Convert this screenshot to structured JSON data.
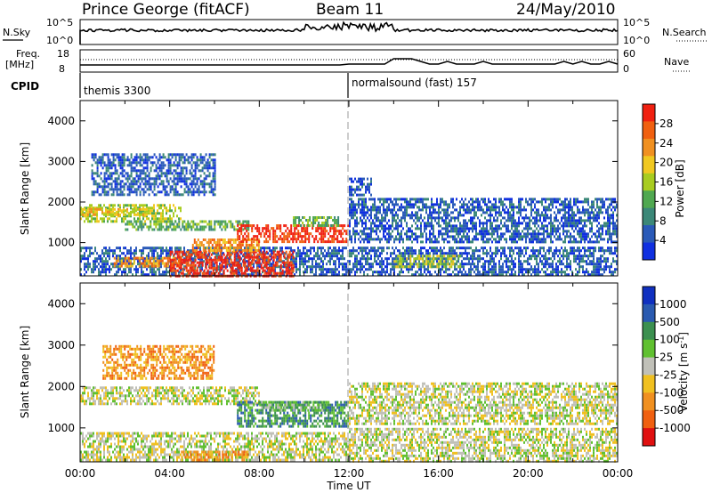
{
  "header": {
    "title": "Prince George (fitACF)",
    "beam": "Beam 11",
    "date": "24/May/2010"
  },
  "top_panels": {
    "nsky_label": "N.Sky",
    "nsky_ticks": [
      "10^5",
      "10^0"
    ],
    "nsearch_label": "N.Search",
    "nsearch_ticks": [
      "10^5",
      "10^0"
    ],
    "freq_label": "Freq.",
    "freq_unit": "[MHz]",
    "freq_ticks": [
      "18",
      "8"
    ],
    "nave_label": "Nave",
    "nave_ticks": [
      "60",
      "0"
    ],
    "cpid_label": "CPID",
    "cpid_segments": [
      {
        "start_hour": 0,
        "label": "themis 3300"
      },
      {
        "start_hour": 12,
        "label": "normalsound (fast) 157"
      }
    ]
  },
  "chart_data": [
    {
      "type": "heatmap",
      "name": "power",
      "ylabel": "Slant Range [km]",
      "x_unit": "hour UT",
      "xlim": [
        0,
        24
      ],
      "ylim": [
        180,
        4500
      ],
      "yticks": [
        1000,
        2000,
        3000,
        4000
      ],
      "colorbar_label": "Power [dB]",
      "colorbar_ticks": [
        "28",
        "24",
        "20",
        "16",
        "12",
        "8",
        "4"
      ],
      "colorbar_range": [
        0,
        30
      ],
      "colors": [
        "#1030e0",
        "#2a5ab8",
        "#3c8878",
        "#50a850",
        "#a8cc20",
        "#f0c820",
        "#f09020",
        "#f06010",
        "#f02010"
      ],
      "regions": [
        {
          "t0": 0.0,
          "t1": 4.5,
          "r0": 1550,
          "r1": 1950,
          "level": 4
        },
        {
          "t0": 0.0,
          "t1": 3.0,
          "r0": 1700,
          "r1": 1850,
          "level": 5
        },
        {
          "t0": 2.0,
          "t1": 7.5,
          "r0": 1350,
          "r1": 1550,
          "level": 3
        },
        {
          "t0": 0.0,
          "t1": 12.0,
          "r0": 200,
          "r1": 900,
          "level": 1
        },
        {
          "t0": 1.5,
          "t1": 4.5,
          "r0": 450,
          "r1": 650,
          "level": 6
        },
        {
          "t0": 4.0,
          "t1": 9.5,
          "r0": 200,
          "r1": 800,
          "level": 8
        },
        {
          "t0": 5.0,
          "t1": 8.0,
          "r0": 800,
          "r1": 1100,
          "level": 6
        },
        {
          "t0": 7.0,
          "t1": 12.0,
          "r0": 1000,
          "r1": 1450,
          "level": 8
        },
        {
          "t0": 9.5,
          "t1": 11.5,
          "r0": 1400,
          "r1": 1650,
          "level": 3
        },
        {
          "t0": 12.0,
          "t1": 24.0,
          "r0": 1000,
          "r1": 2100,
          "level": 1
        },
        {
          "t0": 12.0,
          "t1": 24.0,
          "r0": 200,
          "r1": 900,
          "level": 1
        },
        {
          "t0": 14.0,
          "t1": 17.0,
          "r0": 400,
          "r1": 700,
          "level": 4
        },
        {
          "t0": 12.0,
          "t1": 13.0,
          "r0": 2200,
          "r1": 2600,
          "level": 1
        },
        {
          "t0": 0.5,
          "t1": 6.0,
          "r0": 2200,
          "r1": 3200,
          "level": 1
        }
      ]
    },
    {
      "type": "heatmap",
      "name": "velocity",
      "ylabel": "Slant Range [km]",
      "xlabel": "Time UT",
      "xticks": [
        "00:00",
        "04:00",
        "08:00",
        "12:00",
        "16:00",
        "20:00",
        "00:00"
      ],
      "x_unit": "hour UT",
      "xlim": [
        0,
        24
      ],
      "ylim": [
        180,
        4500
      ],
      "yticks": [
        1000,
        2000,
        3000,
        4000
      ],
      "colorbar_label": "Velocity [m s",
      "colorbar_label_sup": "-1",
      "colorbar_label_end": "]",
      "colorbar_ticks": [
        "1000",
        "500",
        "100",
        "25",
        "-25",
        "-100",
        "-500",
        "-1000"
      ],
      "colors": [
        "#e01010",
        "#f06010",
        "#f09020",
        "#f0c020",
        "#c0c0b8",
        "#60c030",
        "#3c9050",
        "#2a5ab0",
        "#1030c0"
      ],
      "regions": [
        {
          "t0": 0.0,
          "t1": 8.0,
          "r0": 1550,
          "r1": 2000,
          "level": 4
        },
        {
          "t0": 0.0,
          "t1": 12.0,
          "r0": 200,
          "r1": 900,
          "level": 4
        },
        {
          "t0": 7.0,
          "t1": 12.0,
          "r0": 1050,
          "r1": 1650,
          "level": 6
        },
        {
          "t0": 8.0,
          "t1": 11.0,
          "r0": 1450,
          "r1": 1650,
          "level": 5
        },
        {
          "t0": 4.5,
          "t1": 7.5,
          "r0": 200,
          "r1": 450,
          "level": 2
        },
        {
          "t0": 12.0,
          "t1": 24.0,
          "r0": 200,
          "r1": 1000,
          "level": 4
        },
        {
          "t0": 12.0,
          "t1": 24.0,
          "r0": 1100,
          "r1": 2100,
          "level": 4
        },
        {
          "t0": 1.0,
          "t1": 6.0,
          "r0": 2200,
          "r1": 3000,
          "level": 2
        }
      ]
    }
  ]
}
